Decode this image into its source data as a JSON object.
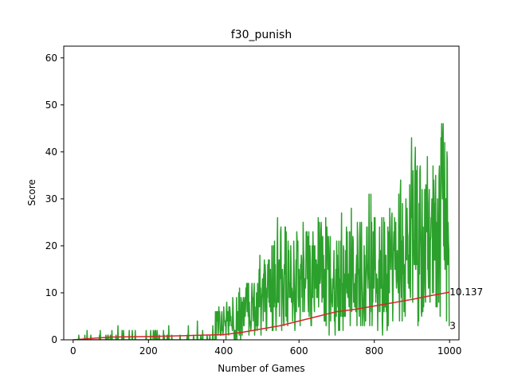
{
  "chart_data": {
    "type": "line",
    "title": "f30_punish",
    "xlabel": "Number of Games",
    "ylabel": "Score",
    "xlim": [
      -25,
      1025
    ],
    "ylim": [
      0,
      62.5
    ],
    "xticks": [
      0,
      200,
      400,
      600,
      800,
      1000
    ],
    "yticks": [
      0,
      10,
      20,
      30,
      40,
      50,
      60
    ],
    "grid": false,
    "legend": "none",
    "series": [
      {
        "color": "#2ca02c",
        "envelope": [
          {
            "x": 0,
            "min": 0,
            "max": 1
          },
          {
            "x": 50,
            "min": 0,
            "max": 2
          },
          {
            "x": 100,
            "min": 0,
            "max": 2
          },
          {
            "x": 160,
            "min": 0,
            "max": 4
          },
          {
            "x": 200,
            "min": 0,
            "max": 2
          },
          {
            "x": 250,
            "min": 0,
            "max": 3
          },
          {
            "x": 300,
            "min": 0,
            "max": 3
          },
          {
            "x": 350,
            "min": 0,
            "max": 5
          },
          {
            "x": 400,
            "min": 0,
            "max": 9
          },
          {
            "x": 430,
            "min": 0,
            "max": 11
          },
          {
            "x": 450,
            "min": 0,
            "max": 14
          },
          {
            "x": 480,
            "min": 1,
            "max": 17
          },
          {
            "x": 500,
            "min": 1,
            "max": 19
          },
          {
            "x": 530,
            "min": 1,
            "max": 24
          },
          {
            "x": 550,
            "min": 2,
            "max": 27
          },
          {
            "x": 580,
            "min": 2,
            "max": 26
          },
          {
            "x": 600,
            "min": 2,
            "max": 27
          },
          {
            "x": 630,
            "min": 3,
            "max": 28
          },
          {
            "x": 650,
            "min": 2,
            "max": 31
          },
          {
            "x": 670,
            "min": 1,
            "max": 32
          },
          {
            "x": 700,
            "min": 1,
            "max": 27
          },
          {
            "x": 730,
            "min": 2,
            "max": 29
          },
          {
            "x": 750,
            "min": 2,
            "max": 28
          },
          {
            "x": 780,
            "min": 2,
            "max": 31
          },
          {
            "x": 800,
            "min": 2,
            "max": 31
          },
          {
            "x": 830,
            "min": 1,
            "max": 32
          },
          {
            "x": 850,
            "min": 2,
            "max": 34
          },
          {
            "x": 880,
            "min": 2,
            "max": 38
          },
          {
            "x": 900,
            "min": 1,
            "max": 44
          },
          {
            "x": 930,
            "min": 2,
            "max": 45
          },
          {
            "x": 950,
            "min": 3,
            "max": 46
          },
          {
            "x": 970,
            "min": 4,
            "max": 48
          },
          {
            "x": 985,
            "min": 5,
            "max": 59
          },
          {
            "x": 1000,
            "min": 3,
            "max": 50
          }
        ],
        "last": {
          "x": 1000,
          "y": 3
        }
      },
      {
        "color": "#d62728",
        "points": [
          {
            "x": 0,
            "y": 0
          },
          {
            "x": 100,
            "y": 0.6
          },
          {
            "x": 200,
            "y": 0.7
          },
          {
            "x": 300,
            "y": 0.9
          },
          {
            "x": 400,
            "y": 1.1
          },
          {
            "x": 450,
            "y": 1.6
          },
          {
            "x": 500,
            "y": 2.3
          },
          {
            "x": 550,
            "y": 3.0
          },
          {
            "x": 600,
            "y": 4.0
          },
          {
            "x": 650,
            "y": 5.0
          },
          {
            "x": 700,
            "y": 6.0
          },
          {
            "x": 750,
            "y": 6.5
          },
          {
            "x": 800,
            "y": 7.2
          },
          {
            "x": 850,
            "y": 7.9
          },
          {
            "x": 900,
            "y": 8.6
          },
          {
            "x": 950,
            "y": 9.4
          },
          {
            "x": 1000,
            "y": 10.137
          }
        ]
      }
    ],
    "annotations": [
      {
        "text": "10.137",
        "x": 1000,
        "y": 10.137
      },
      {
        "text": "3",
        "x": 1000,
        "y": 3
      }
    ]
  }
}
